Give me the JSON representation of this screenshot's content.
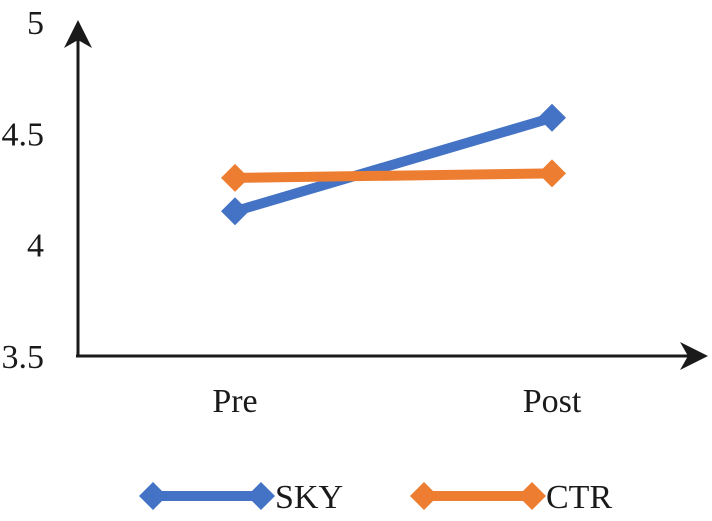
{
  "chart_data": {
    "type": "line",
    "title": "",
    "xlabel": "",
    "ylabel": "",
    "categories": [
      "Pre",
      "Post"
    ],
    "ylim": [
      3.5,
      5
    ],
    "yticks": [
      "3.5",
      "4",
      "4.5",
      "5"
    ],
    "grid": false,
    "legend_position": "bottom",
    "series": [
      {
        "name": "SKY",
        "values": [
          4.15,
          4.57
        ],
        "color": "#4472c4",
        "marker": "diamond"
      },
      {
        "name": "CTR",
        "values": [
          4.3,
          4.32
        ],
        "color": "#ed7d31",
        "marker": "diamond"
      }
    ]
  }
}
